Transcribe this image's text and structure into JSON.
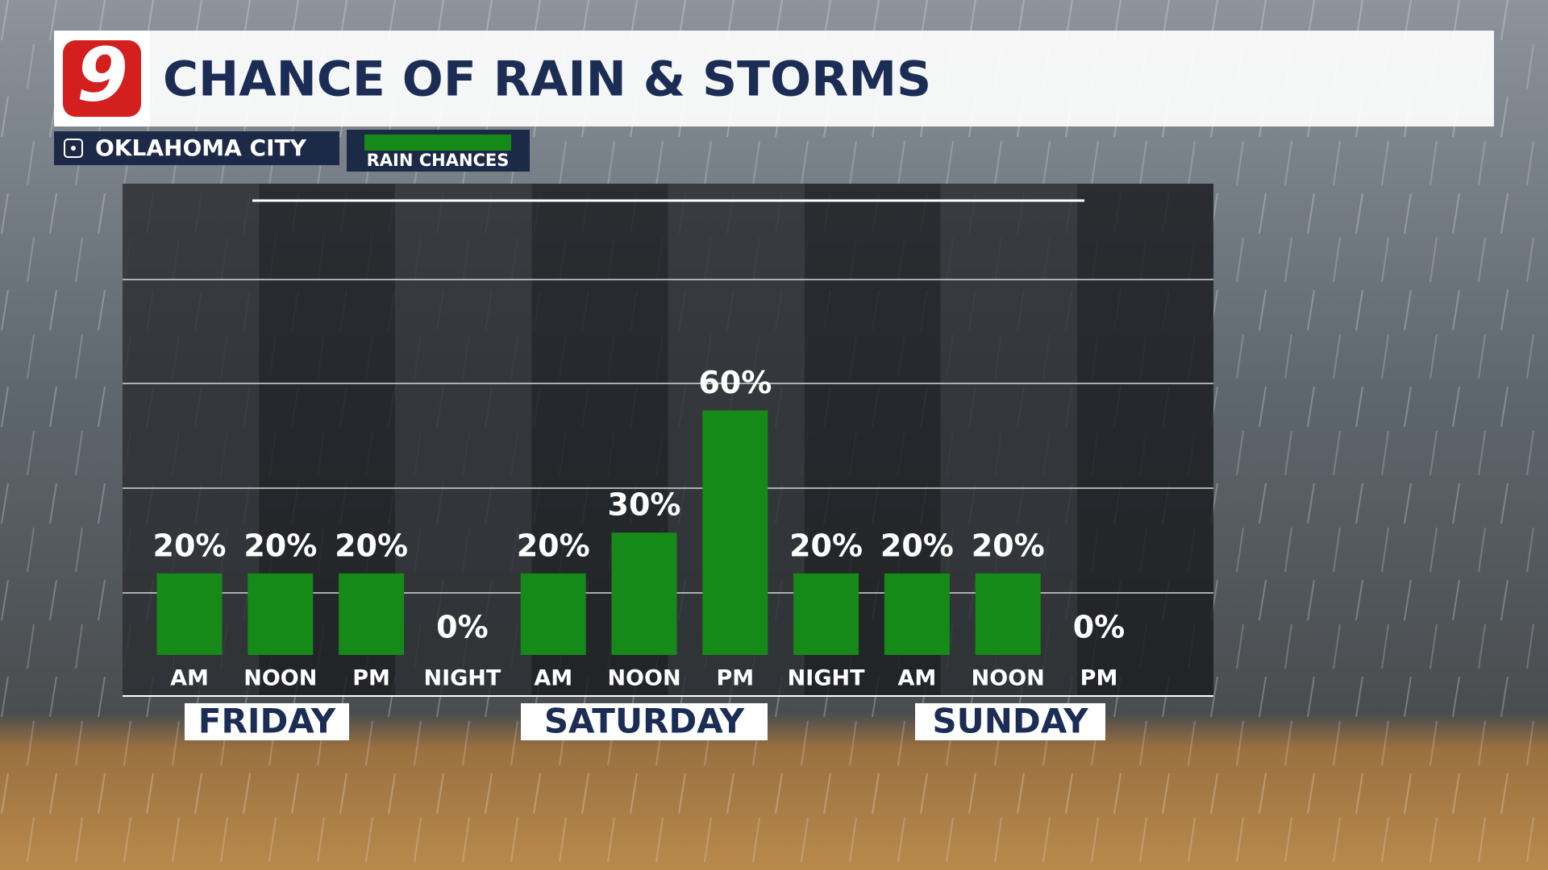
{
  "chart_data": {
    "type": "bar",
    "logo": "9",
    "title": "CHANCE OF RAIN & STORMS",
    "location": "OKLAHOMA CITY",
    "series_name": "RAIN CHANCES",
    "color": "#168a18",
    "categories": [
      "AM",
      "NOON",
      "PM",
      "NIGHT",
      "AM",
      "NOON",
      "PM",
      "NIGHT",
      "AM",
      "NOON",
      "PM"
    ],
    "values": [
      20,
      20,
      20,
      0,
      20,
      30,
      60,
      20,
      20,
      20,
      0
    ],
    "value_labels": [
      "20%",
      "20%",
      "20%",
      "0%",
      "20%",
      "30%",
      "60%",
      "20%",
      "20%",
      "20%",
      "0%"
    ],
    "days": [
      "FRIDAY",
      "SATURDAY",
      "SUNDAY"
    ],
    "ylim": [
      0,
      100
    ]
  }
}
